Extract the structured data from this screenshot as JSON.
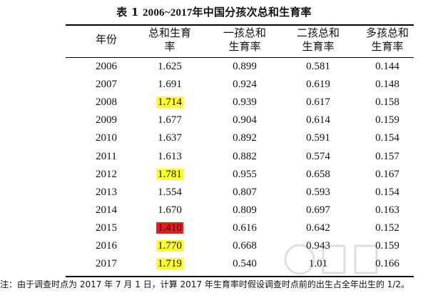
{
  "caption": {
    "prefix": "表 1",
    "years": "2006~2017",
    "suffix": "年中国分孩次总和生育率"
  },
  "headers": [
    {
      "line1": "年份",
      "line2": ""
    },
    {
      "line1": "总和生育",
      "line2": "率"
    },
    {
      "line1": "一孩总和",
      "line2": "生育率"
    },
    {
      "line1": "二孩总和",
      "line2": "生育率"
    },
    {
      "line1": "多孩总和",
      "line2": "生育率"
    }
  ],
  "rows": [
    {
      "year": "2006",
      "tfr": "1.625",
      "first": "0.899",
      "second": "0.581",
      "multi": "0.144",
      "hl": ""
    },
    {
      "year": "2007",
      "tfr": "1.691",
      "first": "0.924",
      "second": "0.619",
      "multi": "0.148",
      "hl": ""
    },
    {
      "year": "2008",
      "tfr": "1.714",
      "first": "0.939",
      "second": "0.617",
      "multi": "0.158",
      "hl": "yellow"
    },
    {
      "year": "2009",
      "tfr": "1.677",
      "first": "0.904",
      "second": "0.614",
      "multi": "0.159",
      "hl": ""
    },
    {
      "year": "2010",
      "tfr": "1.637",
      "first": "0.892",
      "second": "0.591",
      "multi": "0.154",
      "hl": ""
    },
    {
      "year": "2011",
      "tfr": "1.613",
      "first": "0.882",
      "second": "0.574",
      "multi": "0.157",
      "hl": ""
    },
    {
      "year": "2012",
      "tfr": "1.781",
      "first": "0.955",
      "second": "0.658",
      "multi": "0.167",
      "hl": "yellow"
    },
    {
      "year": "2013",
      "tfr": "1.554",
      "first": "0.807",
      "second": "0.593",
      "multi": "0.154",
      "hl": ""
    },
    {
      "year": "2014",
      "tfr": "1.670",
      "first": "0.809",
      "second": "0.697",
      "multi": "0.163",
      "hl": ""
    },
    {
      "year": "2015",
      "tfr": "1.410",
      "first": "0.616",
      "second": "0.642",
      "multi": "0.152",
      "hl": "red"
    },
    {
      "year": "2016",
      "tfr": "1.770",
      "first": "0.668",
      "second": "0.943",
      "multi": "0.159",
      "hl": "yellow"
    },
    {
      "year": "2017",
      "tfr": "1.719",
      "first": "0.540",
      "second": "1.01",
      "multi": "0.166",
      "hl": "yellow"
    }
  ],
  "note": "注：由于调查时点为 2017 年 7 月 1 日，计算 2017 年生育率时假设调查时点前的出生占全年出生的 1/2。",
  "colors": {
    "highlight_yellow": "#ffff2e",
    "highlight_red": "#e0201f"
  }
}
